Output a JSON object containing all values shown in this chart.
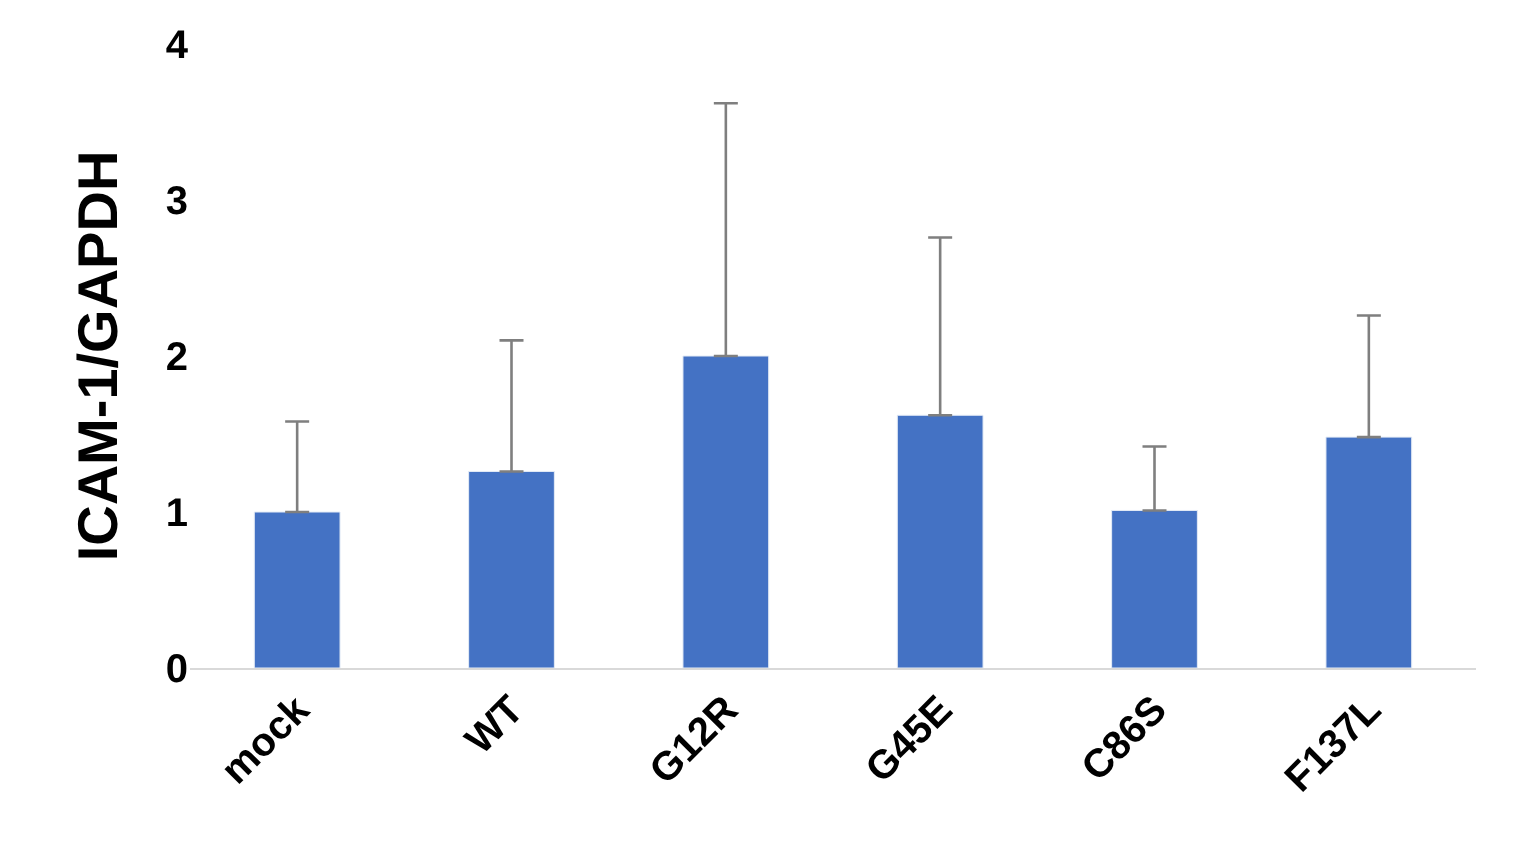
{
  "chart_data": {
    "type": "bar",
    "ylabel": "ICAM-1/GAPDH",
    "categories": [
      "mock",
      "WT",
      "G12R",
      "G45E",
      "C86S",
      "F137L"
    ],
    "values": [
      1.0,
      1.26,
      2.0,
      1.62,
      1.01,
      1.48
    ],
    "errors": [
      [
        1.0,
        1.58
      ],
      [
        1.26,
        2.1
      ],
      [
        2.0,
        3.62
      ],
      [
        1.62,
        2.76
      ],
      [
        1.01,
        1.42
      ],
      [
        1.48,
        2.26
      ]
    ],
    "color": "#4472c4",
    "ylim": [
      0,
      4
    ],
    "yticks": [
      0,
      1,
      2,
      3,
      4
    ]
  }
}
